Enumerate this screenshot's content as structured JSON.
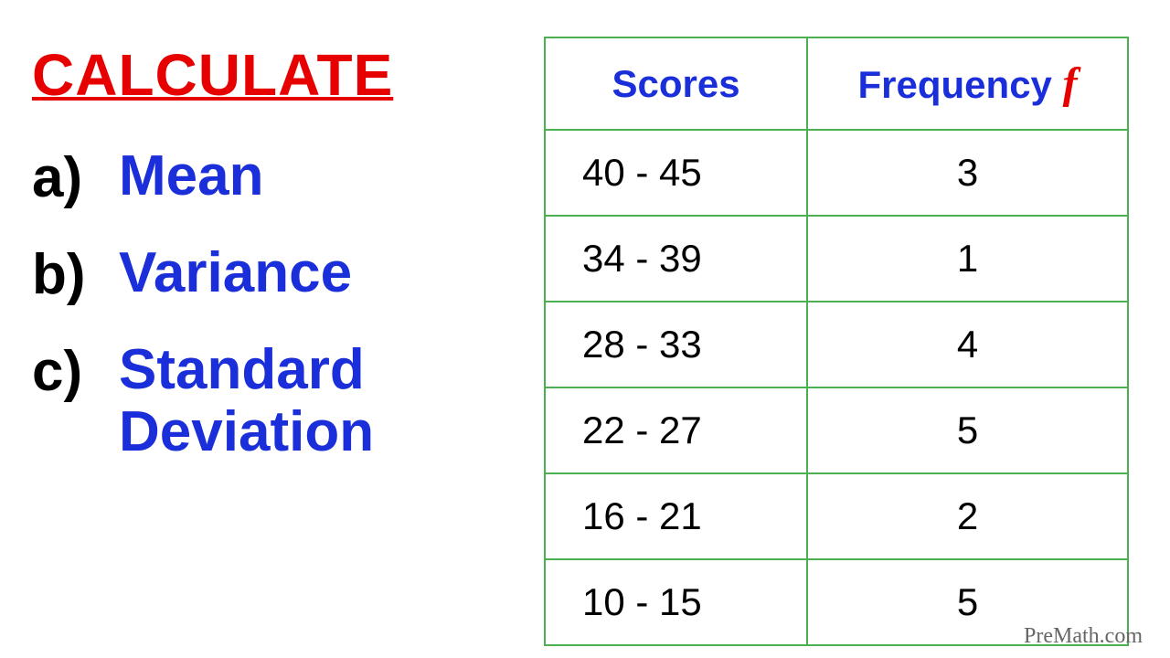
{
  "title": {
    "text": "CALCULATE",
    "color": "#e60000"
  },
  "items": [
    {
      "letter": "a)",
      "text": "Mean",
      "color": "#1a2fd9"
    },
    {
      "letter": "b)",
      "text": "Variance",
      "color": "#1a2fd9"
    },
    {
      "letter": "c)",
      "text": "Standard Deviation",
      "color": "#1a2fd9"
    }
  ],
  "table": {
    "border_color": "#4caf50",
    "header_color": "#1a2fd9",
    "freq_symbol_color": "#e60000",
    "columns": [
      "Scores",
      "Frequency"
    ],
    "freq_symbol": "f",
    "rows": [
      {
        "scores": "40 - 45",
        "frequency": "3"
      },
      {
        "scores": "34 - 39",
        "frequency": "1"
      },
      {
        "scores": "28 - 33",
        "frequency": "4"
      },
      {
        "scores": "22 - 27",
        "frequency": "5"
      },
      {
        "scores": "16 - 21",
        "frequency": "2"
      },
      {
        "scores": "10 - 15",
        "frequency": "5"
      }
    ]
  },
  "watermark": "PreMath.com"
}
